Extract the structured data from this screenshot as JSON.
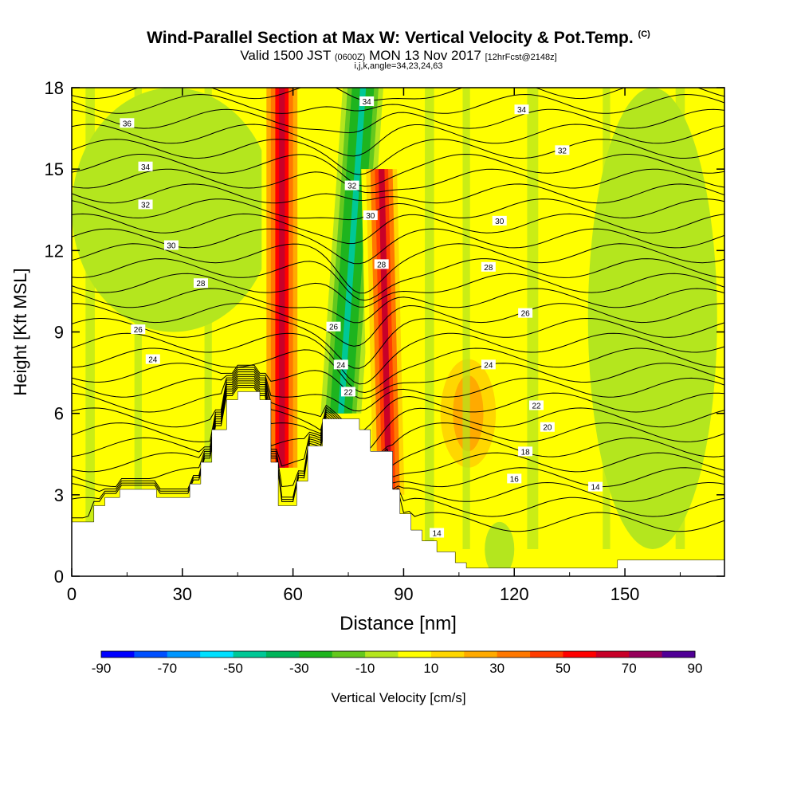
{
  "title": "Wind-Parallel Section at Max W: Vertical Velocity & Pot.Temp.",
  "title_tag": "(C)",
  "subtitle_part1": "Valid 1500 JST",
  "subtitle_part2": "(0600Z)",
  "subtitle_part3": "MON 13 Nov 2017",
  "subtitle_part4": "[12hrFcst@2148z]",
  "subsubtitle": "i,j,k,angle=34,23,24,63",
  "chart_data": {
    "type": "heatmap",
    "xlabel": "Distance [nm]",
    "ylabel": "Height [Kft MSL]",
    "xlim": [
      0,
      177
    ],
    "ylim": [
      0,
      18
    ],
    "x_ticks": [
      0,
      30,
      60,
      90,
      120,
      150
    ],
    "y_ticks": [
      0,
      3,
      6,
      9,
      12,
      15,
      18
    ],
    "colorbar": {
      "label": "Vertical Velocity [cm/s]",
      "tick_labels": [
        "-90",
        "-70",
        "-50",
        "-30",
        "-10",
        "10",
        "30",
        "50",
        "70",
        "90"
      ],
      "bin_edges": [
        -90,
        -80,
        -70,
        -60,
        -50,
        -40,
        -30,
        -20,
        -10,
        0,
        10,
        20,
        30,
        40,
        50,
        60,
        70,
        80,
        90
      ],
      "colors": [
        "#0000ff",
        "#0050ff",
        "#0096ff",
        "#00e0ff",
        "#00c896",
        "#00b45a",
        "#1eb41e",
        "#64c81e",
        "#b4e61e",
        "#ffff00",
        "#ffd700",
        "#ffaa00",
        "#ff7800",
        "#ff3c00",
        "#ff0000",
        "#c80028",
        "#96005a",
        "#500096"
      ]
    },
    "background_w": 5,
    "w_features": [
      {
        "label": "upper-left weak ascent",
        "x": [
          0,
          55
        ],
        "y": [
          9,
          18
        ],
        "w": -8
      },
      {
        "label": "left updraft band",
        "x_top": 57,
        "x_bottom": 57,
        "y": [
          4,
          18
        ],
        "w": 60
      },
      {
        "label": "central downdraft band",
        "x_top": 79,
        "x_bottom": 73,
        "y": [
          6,
          18
        ],
        "w": -35
      },
      {
        "label": "right updraft band",
        "x_top": 84,
        "x_bottom": 86,
        "y": [
          3,
          15
        ],
        "w": 55
      },
      {
        "label": "right low-level ascent",
        "x": [
          112,
          120
        ],
        "y": [
          0,
          2
        ],
        "w": -10
      },
      {
        "label": "far-right column",
        "x": [
          140,
          175
        ],
        "y": [
          1,
          18
        ],
        "w": -6
      },
      {
        "label": "mid-right lee wave",
        "x": [
          100,
          115
        ],
        "y": [
          4,
          8
        ],
        "w": 25
      }
    ],
    "potential_temperature_contours": [
      {
        "value": "14",
        "y": 2.2,
        "label_x": 142
      },
      {
        "value": "16",
        "y": 3.7,
        "label_x": 120
      },
      {
        "value": "18",
        "y": 4.6,
        "label_x": 118
      },
      {
        "value": "20",
        "y": 5.5,
        "label_x": 115
      },
      {
        "value": "22",
        "y": 6.4,
        "label_x": 112
      },
      {
        "value": "24",
        "y": 7.9,
        "label_x": 20
      },
      {
        "value": "26",
        "y": 9.1,
        "label_x": 20
      },
      {
        "value": "28",
        "y": 10.8,
        "label_x": 35
      },
      {
        "value": "30",
        "y": 12.2,
        "label_x": 30
      },
      {
        "value": "32",
        "y": 13.8,
        "label_x": 25
      },
      {
        "value": "34",
        "y": 15.2,
        "label_x": 25
      },
      {
        "value": "36",
        "y": 16.8,
        "label_x": 15
      }
    ],
    "contour_labels": [
      {
        "text": "36",
        "x": 15,
        "y": 16.7
      },
      {
        "text": "34",
        "x": 20,
        "y": 15.1
      },
      {
        "text": "32",
        "x": 20,
        "y": 13.7
      },
      {
        "text": "30",
        "x": 27,
        "y": 12.2
      },
      {
        "text": "28",
        "x": 35,
        "y": 10.8
      },
      {
        "text": "26",
        "x": 18,
        "y": 9.1
      },
      {
        "text": "24",
        "x": 22,
        "y": 8.0
      },
      {
        "text": "34",
        "x": 80,
        "y": 17.5
      },
      {
        "text": "32",
        "x": 76,
        "y": 14.4
      },
      {
        "text": "30",
        "x": 81,
        "y": 13.3
      },
      {
        "text": "28",
        "x": 84,
        "y": 11.5
      },
      {
        "text": "26",
        "x": 71,
        "y": 9.2
      },
      {
        "text": "24",
        "x": 73,
        "y": 7.8
      },
      {
        "text": "22",
        "x": 75,
        "y": 6.8
      },
      {
        "text": "34",
        "x": 122,
        "y": 17.2
      },
      {
        "text": "32",
        "x": 133,
        "y": 15.7
      },
      {
        "text": "30",
        "x": 116,
        "y": 13.1
      },
      {
        "text": "28",
        "x": 113,
        "y": 11.4
      },
      {
        "text": "26",
        "x": 123,
        "y": 9.7
      },
      {
        "text": "24",
        "x": 113,
        "y": 7.8
      },
      {
        "text": "22",
        "x": 126,
        "y": 6.3
      },
      {
        "text": "20",
        "x": 129,
        "y": 5.5
      },
      {
        "text": "18",
        "x": 123,
        "y": 4.6
      },
      {
        "text": "16",
        "x": 120,
        "y": 3.6
      },
      {
        "text": "14",
        "x": 142,
        "y": 3.3
      },
      {
        "text": "14",
        "x": 99,
        "y": 1.6
      }
    ],
    "terrain": [
      [
        0,
        2
      ],
      [
        6,
        2
      ],
      [
        6,
        2.6
      ],
      [
        9,
        2.6
      ],
      [
        9,
        2.9
      ],
      [
        13,
        2.9
      ],
      [
        13,
        3.2
      ],
      [
        23,
        3.2
      ],
      [
        23,
        2.9
      ],
      [
        32,
        2.9
      ],
      [
        32,
        3.4
      ],
      [
        35,
        3.4
      ],
      [
        35,
        4.2
      ],
      [
        38,
        4.2
      ],
      [
        38,
        5.4
      ],
      [
        42,
        5.4
      ],
      [
        42,
        6.5
      ],
      [
        45,
        6.5
      ],
      [
        45,
        6.8
      ],
      [
        51,
        6.8
      ],
      [
        51,
        6.5
      ],
      [
        54,
        6.5
      ],
      [
        54,
        4.2
      ],
      [
        56,
        4.2
      ],
      [
        56,
        2.6
      ],
      [
        61,
        2.6
      ],
      [
        61,
        3.5
      ],
      [
        64,
        3.5
      ],
      [
        64,
        4.8
      ],
      [
        68,
        4.8
      ],
      [
        68,
        5.8
      ],
      [
        78,
        5.8
      ],
      [
        78,
        5.4
      ],
      [
        81,
        5.4
      ],
      [
        81,
        4.6
      ],
      [
        87,
        4.6
      ],
      [
        87,
        3.2
      ],
      [
        89,
        3.2
      ],
      [
        89,
        2.3
      ],
      [
        92,
        2.3
      ],
      [
        92,
        1.7
      ],
      [
        95,
        1.7
      ],
      [
        95,
        1.3
      ],
      [
        99,
        1.3
      ],
      [
        99,
        0.9
      ],
      [
        104,
        0.9
      ],
      [
        104,
        0.5
      ],
      [
        107,
        0.5
      ],
      [
        107,
        0.3
      ],
      [
        148,
        0.3
      ],
      [
        148,
        0.6
      ],
      [
        177,
        0.6
      ]
    ]
  }
}
